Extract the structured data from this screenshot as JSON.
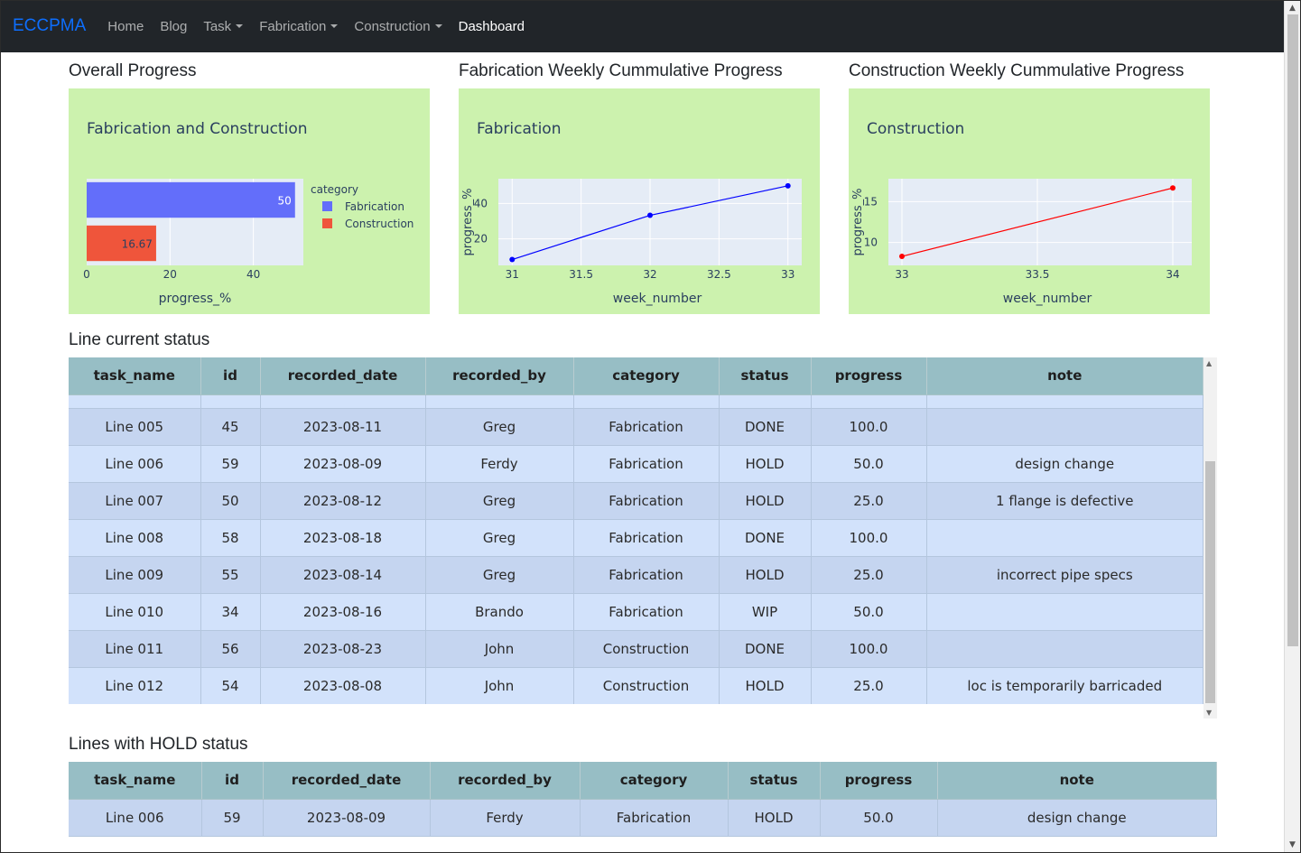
{
  "nav": {
    "brand": "ECCPMA",
    "items": [
      {
        "label": "Home",
        "dropdown": false,
        "active": false
      },
      {
        "label": "Blog",
        "dropdown": false,
        "active": false
      },
      {
        "label": "Task",
        "dropdown": true,
        "active": false
      },
      {
        "label": "Fabrication",
        "dropdown": true,
        "active": false
      },
      {
        "label": "Construction",
        "dropdown": true,
        "active": false
      },
      {
        "label": "Dashboard",
        "dropdown": false,
        "active": true
      }
    ]
  },
  "sections": {
    "overall": "Overall Progress",
    "fab_weekly": "Fabrication Weekly Cummulative Progress",
    "con_weekly": "Construction Weekly Cummulative Progress",
    "line_status": "Line current status",
    "hold_status": "Lines with HOLD status"
  },
  "chart_data": [
    {
      "type": "bar",
      "orientation": "horizontal",
      "title": "Fabrication and Construction",
      "xlabel": "progress_%",
      "ylabel": "",
      "xlim": [
        0,
        52
      ],
      "xticks": [
        0,
        20,
        40
      ],
      "legend_title": "category",
      "legend_position": "right",
      "series": [
        {
          "name": "Fabrication",
          "value": 50,
          "label": "50",
          "color": "#636efa"
        },
        {
          "name": "Construction",
          "value": 16.67,
          "label": "16.67",
          "color": "#ef553b"
        }
      ],
      "grid": true
    },
    {
      "type": "line",
      "title": "Fabrication",
      "xlabel": "week_number",
      "ylabel": "progress_%",
      "x": [
        31,
        32,
        33
      ],
      "y": [
        8.3,
        33.3,
        50
      ],
      "xlim": [
        30.9,
        33.1
      ],
      "ylim": [
        5,
        54
      ],
      "xticks": [
        31,
        31.5,
        32,
        32.5,
        33
      ],
      "yticks": [
        20,
        40
      ],
      "color": "#0000ff",
      "grid": true
    },
    {
      "type": "line",
      "title": "Construction",
      "xlabel": "week_number",
      "ylabel": "progress_%",
      "x": [
        33,
        34
      ],
      "y": [
        8.3,
        16.67
      ],
      "xlim": [
        32.95,
        34.07
      ],
      "ylim": [
        7.2,
        17.8
      ],
      "xticks": [
        33,
        33.5,
        34
      ],
      "yticks": [
        10,
        15
      ],
      "color": "#ff0000",
      "grid": true
    }
  ],
  "line_table": {
    "columns": [
      "task_name",
      "id",
      "recorded_date",
      "recorded_by",
      "category",
      "status",
      "progress",
      "note"
    ],
    "rows": [
      [
        "Line 005",
        "45",
        "2023-08-11",
        "Greg",
        "Fabrication",
        "DONE",
        "100.0",
        ""
      ],
      [
        "Line 006",
        "59",
        "2023-08-09",
        "Ferdy",
        "Fabrication",
        "HOLD",
        "50.0",
        "design change"
      ],
      [
        "Line 007",
        "50",
        "2023-08-12",
        "Greg",
        "Fabrication",
        "HOLD",
        "25.0",
        "1 flange is defective"
      ],
      [
        "Line 008",
        "58",
        "2023-08-18",
        "Greg",
        "Fabrication",
        "DONE",
        "100.0",
        ""
      ],
      [
        "Line 009",
        "55",
        "2023-08-14",
        "Greg",
        "Fabrication",
        "HOLD",
        "25.0",
        "incorrect pipe specs"
      ],
      [
        "Line 010",
        "34",
        "2023-08-16",
        "Brando",
        "Fabrication",
        "WIP",
        "50.0",
        ""
      ],
      [
        "Line 011",
        "56",
        "2023-08-23",
        "John",
        "Construction",
        "DONE",
        "100.0",
        ""
      ],
      [
        "Line 012",
        "54",
        "2023-08-08",
        "John",
        "Construction",
        "HOLD",
        "25.0",
        "loc is temporarily barricaded"
      ]
    ]
  },
  "hold_table": {
    "columns": [
      "task_name",
      "id",
      "recorded_date",
      "recorded_by",
      "category",
      "status",
      "progress",
      "note"
    ],
    "rows": [
      [
        "Line 006",
        "59",
        "2023-08-09",
        "Ferdy",
        "Fabrication",
        "HOLD",
        "50.0",
        "design change"
      ]
    ]
  },
  "colors": {
    "navbar_bg": "#212529",
    "brand": "#0d6efd",
    "chart_paper": "#ccf2ae",
    "plot_bg": "#e5ecf6",
    "table_header": "#97bec5",
    "row_odd": "#c5d5f0",
    "row_even": "#d2e2fb"
  }
}
